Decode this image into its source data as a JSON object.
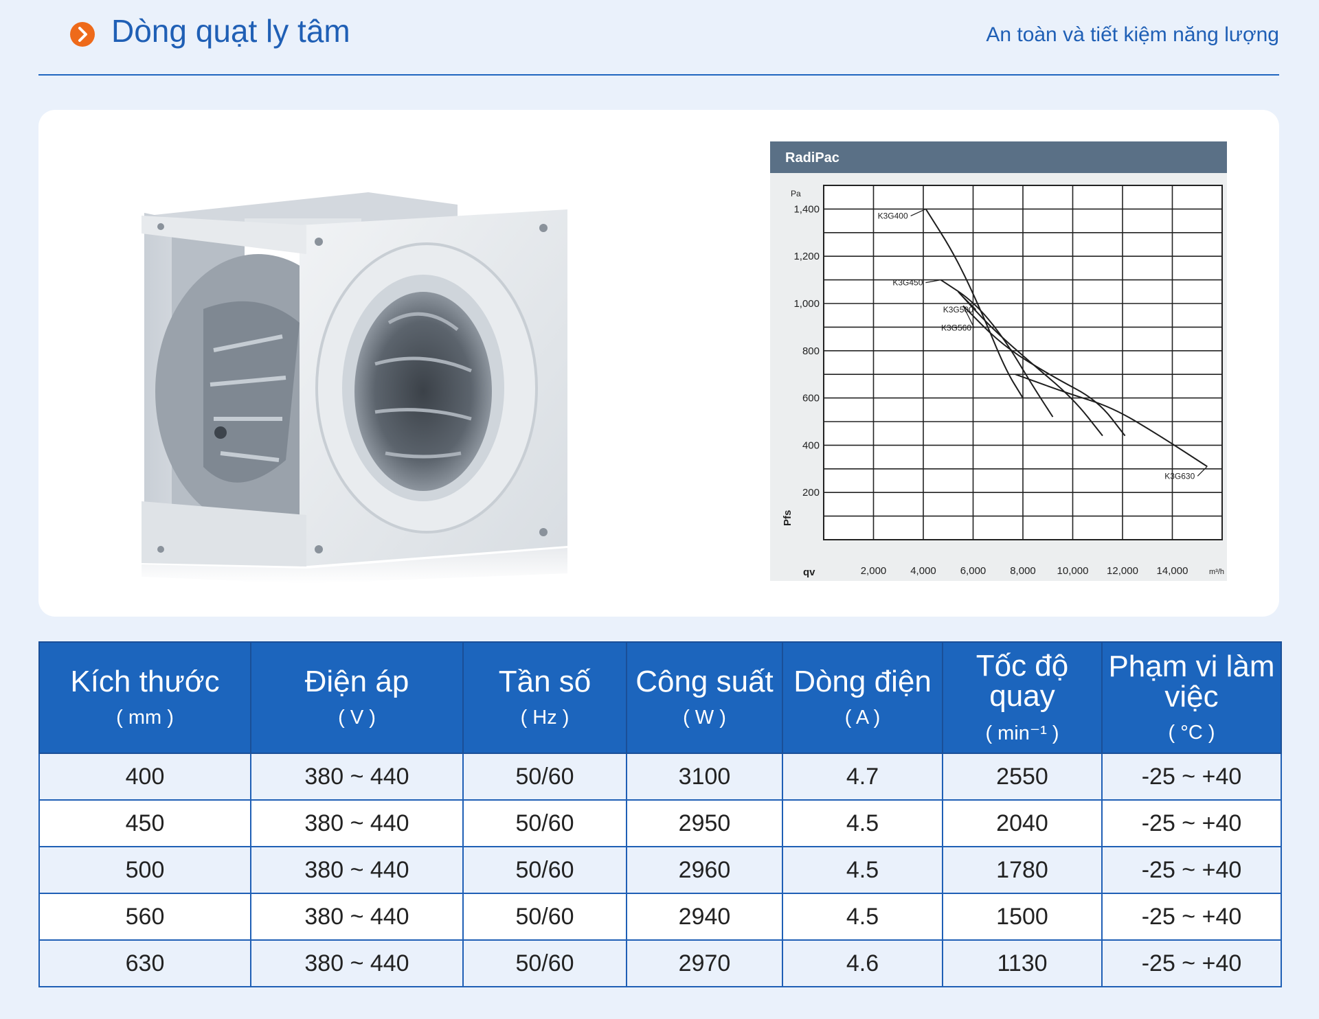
{
  "header": {
    "title": "Dòng quạt ly tâm",
    "subtitle": "An toàn và tiết kiệm năng lượng",
    "bullet_icon": "chevron-right-icon",
    "accent": "#ee6a1a",
    "brand": "#1f5fb5"
  },
  "chart_data": {
    "type": "line",
    "title": "RadiPac",
    "xlabel": "qv",
    "ylabel": "Pfs",
    "x_unit": "m³/h",
    "y_unit": "Pa",
    "xlim": [
      0,
      16000
    ],
    "ylim": [
      0,
      1500
    ],
    "x_ticks": [
      "2,000",
      "4,000",
      "6,000",
      "8,000",
      "10,000",
      "12,000",
      "14,000"
    ],
    "y_ticks": [
      "200",
      "400",
      "600",
      "800",
      "1,000",
      "1,200",
      "1,400"
    ],
    "grid": true,
    "series": [
      {
        "name": "K3G400",
        "points": [
          [
            4100,
            1400
          ],
          [
            5300,
            1200
          ],
          [
            6400,
            950
          ],
          [
            7300,
            720
          ],
          [
            8000,
            600
          ]
        ]
      },
      {
        "name": "K3G450",
        "points": [
          [
            4700,
            1100
          ],
          [
            6000,
            1010
          ],
          [
            7200,
            860
          ],
          [
            8400,
            650
          ],
          [
            9200,
            520
          ]
        ]
      },
      {
        "name": "K3G500",
        "points": [
          [
            5400,
            1050
          ],
          [
            6700,
            900
          ],
          [
            8200,
            760
          ],
          [
            10000,
            600
          ],
          [
            11200,
            440
          ]
        ]
      },
      {
        "name": "K3G560",
        "points": [
          [
            5600,
            990
          ],
          [
            7200,
            820
          ],
          [
            9200,
            690
          ],
          [
            11000,
            590
          ],
          [
            12100,
            440
          ]
        ]
      },
      {
        "name": "K3G630",
        "points": [
          [
            7700,
            700
          ],
          [
            9800,
            620
          ],
          [
            11600,
            560
          ],
          [
            13500,
            440
          ],
          [
            15400,
            310
          ]
        ]
      }
    ]
  },
  "table": {
    "headers": [
      {
        "name": "Kích thước",
        "unit": "( mm )"
      },
      {
        "name": "Điện áp",
        "unit": "( V )"
      },
      {
        "name": "Tần số",
        "unit": "( Hz )"
      },
      {
        "name": "Công suất",
        "unit": "( W )"
      },
      {
        "name": "Dòng điện",
        "unit": "( A )"
      },
      {
        "name": "Tốc độ quay",
        "unit": "( min⁻¹ )"
      },
      {
        "name": "Phạm vi làm việc",
        "unit": "( °C )"
      }
    ],
    "rows": [
      [
        "400",
        "380 ~ 440",
        "50/60",
        "3100",
        "4.7",
        "2550",
        "-25 ~ +40"
      ],
      [
        "450",
        "380 ~ 440",
        "50/60",
        "2950",
        "4.5",
        "2040",
        "-25 ~ +40"
      ],
      [
        "500",
        "380 ~ 440",
        "50/60",
        "2960",
        "4.5",
        "1780",
        "-25 ~ +40"
      ],
      [
        "560",
        "380 ~ 440",
        "50/60",
        "2940",
        "4.5",
        "1500",
        "-25 ~ +40"
      ],
      [
        "630",
        "380 ~ 440",
        "50/60",
        "2970",
        "4.6",
        "1130",
        "-25 ~ +40"
      ]
    ]
  }
}
